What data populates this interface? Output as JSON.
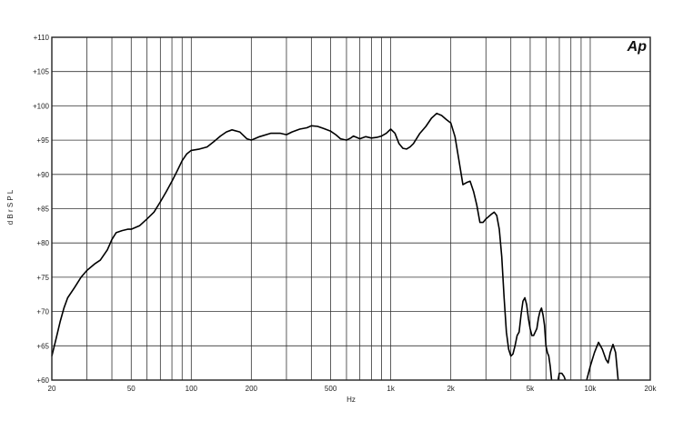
{
  "brand": "Ap",
  "chart_data": {
    "type": "line",
    "title": "",
    "xlabel": "Hz",
    "ylabel": "d B r S P L",
    "x_scale": "log",
    "xlim": [
      20,
      20000
    ],
    "ylim": [
      60,
      110
    ],
    "grid": true,
    "x_tick_labels": [
      {
        "v": 20,
        "t": "20"
      },
      {
        "v": 50,
        "t": "50"
      },
      {
        "v": 100,
        "t": "100"
      },
      {
        "v": 200,
        "t": "200"
      },
      {
        "v": 500,
        "t": "500"
      },
      {
        "v": 1000,
        "t": "1k"
      },
      {
        "v": 2000,
        "t": "2k"
      },
      {
        "v": 5000,
        "t": "5k"
      },
      {
        "v": 10000,
        "t": "10k"
      },
      {
        "v": 20000,
        "t": "20k"
      }
    ],
    "x_grid": [
      20,
      30,
      40,
      50,
      60,
      70,
      80,
      90,
      100,
      200,
      300,
      400,
      500,
      600,
      700,
      800,
      900,
      1000,
      2000,
      3000,
      4000,
      5000,
      6000,
      7000,
      8000,
      9000,
      10000,
      20000
    ],
    "y_tick_labels": [
      {
        "v": 60,
        "t": "+60"
      },
      {
        "v": 65,
        "t": "+65"
      },
      {
        "v": 70,
        "t": "+70"
      },
      {
        "v": 75,
        "t": "+75"
      },
      {
        "v": 80,
        "t": "+80"
      },
      {
        "v": 85,
        "t": "+85"
      },
      {
        "v": 90,
        "t": "+90"
      },
      {
        "v": 95,
        "t": "+95"
      },
      {
        "v": 100,
        "t": "+100"
      },
      {
        "v": 105,
        "t": "+105"
      },
      {
        "v": 110,
        "t": "+110"
      }
    ],
    "series": [
      {
        "segments": [
          [
            [
              20,
              63.5
            ],
            [
              21,
              66
            ],
            [
              22,
              68.5
            ],
            [
              23,
              70.5
            ],
            [
              24,
              72
            ],
            [
              26,
              73.5
            ],
            [
              28,
              75
            ],
            [
              30,
              76
            ],
            [
              33,
              77
            ],
            [
              35,
              77.5
            ],
            [
              38,
              79
            ],
            [
              40,
              80.5
            ],
            [
              42,
              81.5
            ],
            [
              45,
              81.8
            ],
            [
              48,
              82
            ],
            [
              50,
              82
            ],
            [
              55,
              82.5
            ],
            [
              60,
              83.5
            ],
            [
              65,
              84.5
            ],
            [
              70,
              86
            ],
            [
              75,
              87.5
            ],
            [
              80,
              89
            ],
            [
              85,
              90.5
            ],
            [
              90,
              92
            ],
            [
              95,
              93
            ],
            [
              100,
              93.5
            ],
            [
              110,
              93.7
            ],
            [
              120,
              94
            ],
            [
              130,
              94.8
            ],
            [
              140,
              95.6
            ],
            [
              150,
              96.2
            ],
            [
              160,
              96.5
            ],
            [
              175,
              96.2
            ],
            [
              190,
              95.2
            ],
            [
              200,
              95
            ],
            [
              220,
              95.5
            ],
            [
              250,
              96
            ],
            [
              280,
              96
            ],
            [
              300,
              95.8
            ],
            [
              320,
              96.2
            ],
            [
              350,
              96.6
            ],
            [
              380,
              96.8
            ],
            [
              400,
              97.1
            ],
            [
              430,
              97
            ],
            [
              460,
              96.7
            ],
            [
              500,
              96.3
            ],
            [
              530,
              95.8
            ],
            [
              560,
              95.2
            ],
            [
              600,
              95
            ],
            [
              630,
              95.3
            ],
            [
              650,
              95.6
            ],
            [
              700,
              95.2
            ],
            [
              750,
              95.5
            ],
            [
              800,
              95.3
            ],
            [
              850,
              95.4
            ],
            [
              900,
              95.6
            ],
            [
              950,
              96
            ],
            [
              1000,
              96.6
            ],
            [
              1050,
              96
            ],
            [
              1100,
              94.5
            ],
            [
              1150,
              93.8
            ],
            [
              1200,
              93.7
            ],
            [
              1250,
              94
            ],
            [
              1300,
              94.5
            ],
            [
              1400,
              96
            ],
            [
              1500,
              97
            ],
            [
              1600,
              98.2
            ],
            [
              1700,
              98.9
            ],
            [
              1800,
              98.6
            ],
            [
              1900,
              98
            ],
            [
              2000,
              97.5
            ],
            [
              2100,
              95.5
            ],
            [
              2200,
              92
            ],
            [
              2300,
              88.5
            ],
            [
              2400,
              88.8
            ],
            [
              2500,
              89
            ],
            [
              2600,
              87.5
            ],
            [
              2700,
              85.5
            ],
            [
              2800,
              83
            ],
            [
              2900,
              83
            ],
            [
              3000,
              83.5
            ],
            [
              3200,
              84.2
            ],
            [
              3300,
              84.5
            ],
            [
              3400,
              84
            ],
            [
              3500,
              82
            ],
            [
              3600,
              78
            ],
            [
              3700,
              72
            ],
            [
              3800,
              67
            ],
            [
              3900,
              64.5
            ],
            [
              4000,
              63.5
            ],
            [
              4100,
              63.8
            ],
            [
              4200,
              65
            ],
            [
              4300,
              66.5
            ],
            [
              4400,
              67
            ],
            [
              4500,
              69.5
            ],
            [
              4600,
              71.5
            ],
            [
              4700,
              72
            ],
            [
              4800,
              71
            ],
            [
              4900,
              69
            ],
            [
              5000,
              67.5
            ],
            [
              5100,
              66.5
            ],
            [
              5200,
              66.5
            ],
            [
              5300,
              67
            ],
            [
              5400,
              67.5
            ],
            [
              5500,
              69
            ],
            [
              5600,
              70
            ],
            [
              5700,
              70.5
            ],
            [
              5800,
              69.5
            ],
            [
              5900,
              68
            ],
            [
              6000,
              65
            ],
            [
              6100,
              64
            ],
            [
              6200,
              63.5
            ],
            [
              6300,
              62
            ],
            [
              6400,
              60
            ]
          ],
          [
            [
              6900,
              60
            ],
            [
              7000,
              61
            ],
            [
              7200,
              61
            ],
            [
              7400,
              60.5
            ],
            [
              7500,
              60
            ]
          ],
          [
            [
              9600,
              60
            ],
            [
              10000,
              62
            ],
            [
              10500,
              64
            ],
            [
              11000,
              65.5
            ],
            [
              11500,
              64.5
            ],
            [
              12000,
              63
            ],
            [
              12300,
              62.5
            ],
            [
              12600,
              64
            ],
            [
              13000,
              65.2
            ],
            [
              13400,
              64
            ],
            [
              13800,
              60
            ]
          ]
        ]
      }
    ]
  }
}
